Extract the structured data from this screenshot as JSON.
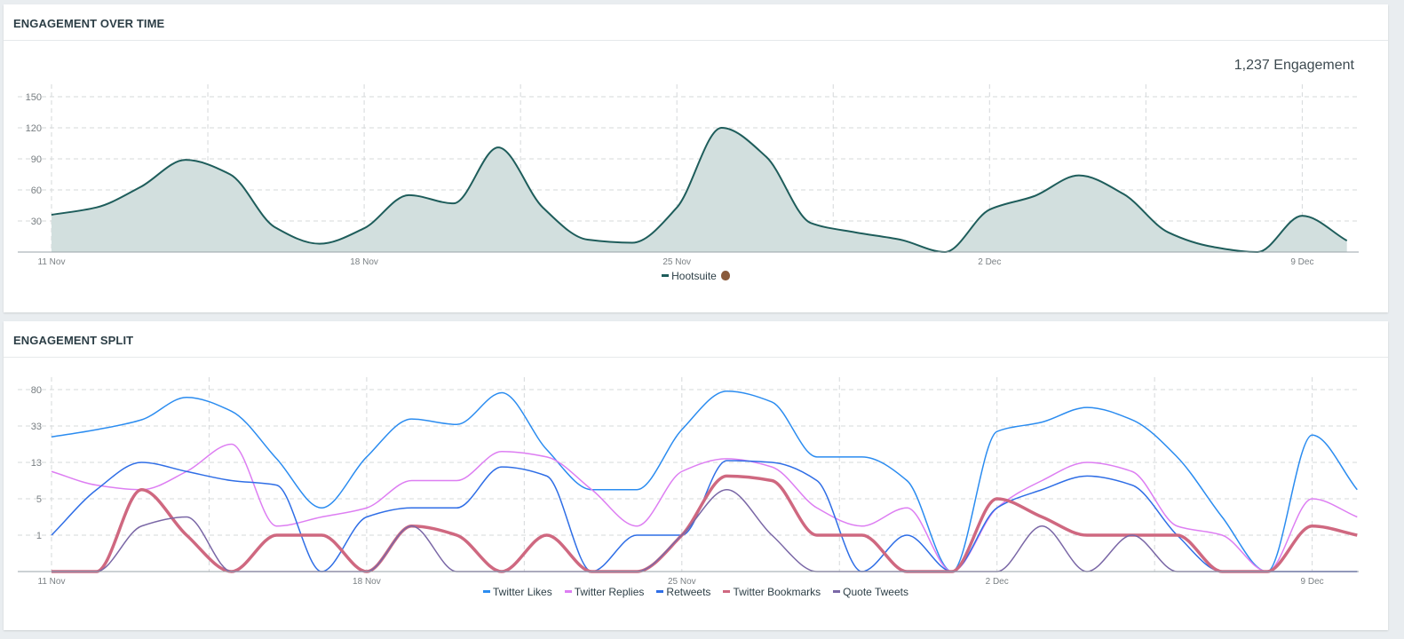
{
  "engagement_over_time": {
    "title": "ENGAGEMENT OVER TIME",
    "total_label": "1,237 Engagement",
    "legend": {
      "name": "Hootsuite",
      "icon": "owl-icon"
    }
  },
  "engagement_split": {
    "title": "ENGAGEMENT SPLIT"
  },
  "chart_data": [
    {
      "type": "area",
      "x_tick_labels": [
        "11 Nov",
        "18 Nov",
        "25 Nov",
        "2 Dec",
        "9 Dec"
      ],
      "x": [
        "11 Nov",
        "12 Nov",
        "13 Nov",
        "14 Nov",
        "15 Nov",
        "16 Nov",
        "17 Nov",
        "18 Nov",
        "19 Nov",
        "20 Nov",
        "21 Nov",
        "22 Nov",
        "23 Nov",
        "24 Nov",
        "25 Nov",
        "26 Nov",
        "27 Nov",
        "28 Nov",
        "29 Nov",
        "30 Nov",
        "1 Dec",
        "2 Dec",
        "3 Dec",
        "4 Dec",
        "5 Dec",
        "6 Dec",
        "7 Dec",
        "8 Dec",
        "9 Dec",
        "10 Dec"
      ],
      "y_ticks": [
        30,
        60,
        90,
        120,
        150
      ],
      "ylim": [
        0,
        150
      ],
      "grid": true,
      "legend_position": "bottom",
      "series": [
        {
          "name": "Hootsuite",
          "color": "#1e5d5b",
          "fill": "#d2dfde",
          "values": [
            36,
            43,
            63,
            89,
            75,
            24,
            8,
            23,
            55,
            47,
            101,
            43,
            12,
            9,
            43,
            120,
            92,
            28,
            19,
            12,
            0,
            41,
            54,
            74,
            56,
            19,
            5,
            0,
            35,
            11
          ]
        }
      ]
    },
    {
      "type": "line",
      "x_tick_labels": [
        "11 Nov",
        "18 Nov",
        "25 Nov",
        "2 Dec",
        "9 Dec"
      ],
      "x": [
        "11 Nov",
        "12 Nov",
        "13 Nov",
        "14 Nov",
        "15 Nov",
        "16 Nov",
        "17 Nov",
        "18 Nov",
        "19 Nov",
        "20 Nov",
        "21 Nov",
        "22 Nov",
        "23 Nov",
        "24 Nov",
        "25 Nov",
        "26 Nov",
        "27 Nov",
        "28 Nov",
        "29 Nov",
        "30 Nov",
        "1 Dec",
        "2 Dec",
        "3 Dec",
        "4 Dec",
        "5 Dec",
        "6 Dec",
        "7 Dec",
        "8 Dec",
        "9 Dec",
        "10 Dec"
      ],
      "y_ticks": [
        1,
        5,
        13,
        33,
        80
      ],
      "y_scale": "nonlinear (evenly spaced ticks)",
      "ylim": [
        0,
        80
      ],
      "grid": true,
      "legend_position": "bottom",
      "series": [
        {
          "name": "Twitter Likes",
          "color": "#2b8cf0",
          "width": 1.5,
          "values": [
            27,
            31,
            41,
            70,
            52,
            15,
            4,
            16,
            42,
            35,
            76,
            20,
            7,
            7,
            31,
            78,
            64,
            16,
            16,
            9,
            0,
            30,
            38,
            57,
            41,
            16,
            3,
            0,
            28,
            7
          ]
        },
        {
          "name": "Twitter Replies",
          "color": "#dd7ef2",
          "width": 1.5,
          "values": [
            11,
            8,
            7,
            11,
            23,
            2,
            3,
            4,
            9,
            9,
            19,
            16,
            7,
            2,
            11,
            15,
            12,
            4,
            2,
            4,
            0,
            4,
            9,
            13,
            11,
            2,
            1,
            0,
            5,
            3
          ]
        },
        {
          "name": "Retweets",
          "color": "#2f6ee6",
          "width": 1.5,
          "values": [
            1,
            7,
            13,
            11,
            9,
            8,
            0,
            3,
            4,
            4,
            12,
            10,
            0,
            1,
            1,
            14,
            13,
            9,
            0,
            1,
            0,
            4,
            7,
            10,
            8,
            1,
            0,
            0,
            0,
            0
          ]
        },
        {
          "name": "Twitter Bookmarks",
          "color": "#cf6880",
          "width": 3.5,
          "values": [
            0,
            0,
            7,
            1,
            0,
            1,
            1,
            0,
            2,
            1,
            0,
            1,
            0,
            0,
            1,
            10,
            9,
            1,
            1,
            0,
            0,
            5,
            3,
            1,
            1,
            1,
            0,
            0,
            2,
            1
          ]
        },
        {
          "name": "Quote Tweets",
          "color": "#7a67a6",
          "width": 1.5,
          "values": [
            0,
            0,
            2,
            3,
            0,
            0,
            0,
            0,
            2,
            0,
            0,
            0,
            0,
            0,
            1,
            7,
            1,
            0,
            0,
            0,
            0,
            0,
            2,
            0,
            1,
            0,
            0,
            0,
            0,
            0
          ]
        }
      ]
    }
  ]
}
